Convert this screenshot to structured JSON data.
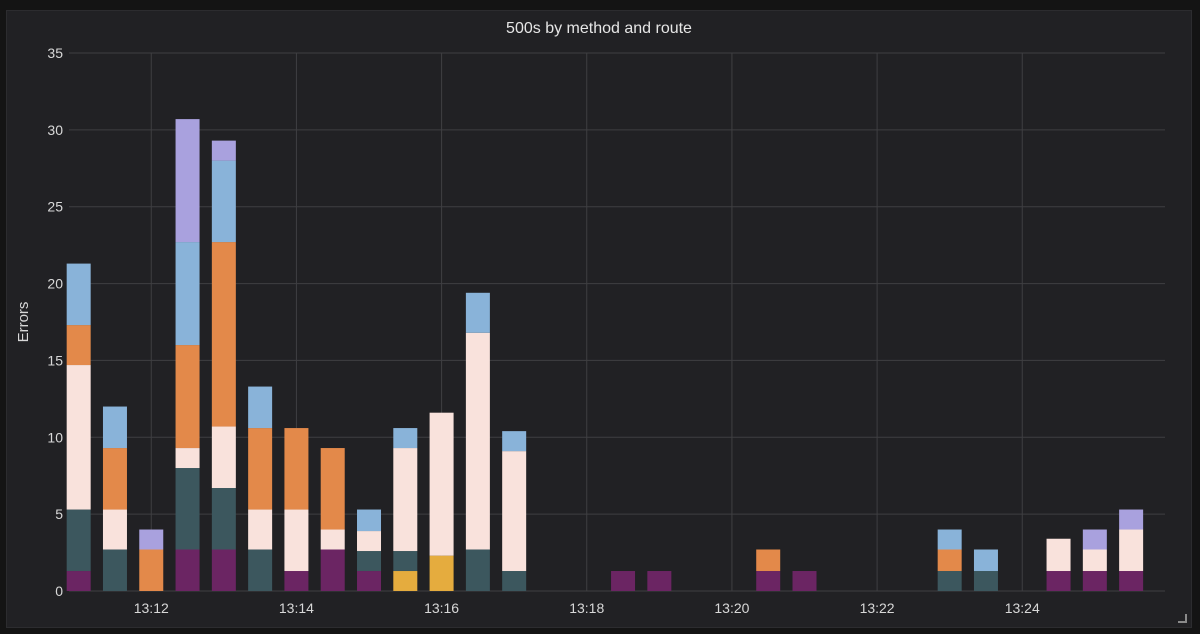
{
  "panel": {
    "title": "500s by method and route"
  },
  "chart_data": {
    "type": "bar",
    "stacked": true,
    "title": "500s by method and route",
    "xlabel": "",
    "ylabel": "Errors",
    "ylim": [
      0,
      35
    ],
    "yticks": [
      0,
      5,
      10,
      15,
      20,
      25,
      30,
      35
    ],
    "xlim": [
      "13:10:52",
      "13:25:58"
    ],
    "xticks": [
      "13:12",
      "13:14",
      "13:16",
      "13:18",
      "13:20",
      "13:22",
      "13:24"
    ],
    "grid": true,
    "legend": "none",
    "x": [
      "13:11",
      "13:11:30",
      "13:12",
      "13:12:30",
      "13:13",
      "13:13:30",
      "13:14",
      "13:14:30",
      "13:15",
      "13:15:30",
      "13:16",
      "13:16:30",
      "13:17",
      "13:18:30",
      "13:19",
      "13:20:30",
      "13:21",
      "13:23",
      "13:23:30",
      "13:24:30",
      "13:25",
      "13:25:30"
    ],
    "series": [
      {
        "color": "#6b2563",
        "values": [
          1.3,
          0,
          0,
          2.7,
          2.7,
          0,
          1.3,
          2.7,
          1.3,
          0,
          0,
          0,
          0,
          1.3,
          1.3,
          1.3,
          1.3,
          0,
          0,
          1.3,
          1.3,
          1.3
        ]
      },
      {
        "color": "#e5ac3e",
        "values": [
          0,
          0,
          0,
          0,
          0,
          0,
          0,
          0,
          0,
          1.3,
          2.3,
          0,
          0,
          0,
          0,
          0,
          0,
          0,
          0,
          0,
          0,
          0
        ]
      },
      {
        "color": "#3c575e",
        "values": [
          4.0,
          2.7,
          0,
          5.3,
          4.0,
          2.7,
          0,
          0,
          1.3,
          1.3,
          0,
          2.7,
          1.3,
          0,
          0,
          0,
          0,
          1.3,
          1.3,
          0,
          0,
          0
        ]
      },
      {
        "color": "#f9e2dc",
        "values": [
          9.4,
          2.6,
          0,
          1.3,
          4.0,
          2.6,
          4.0,
          1.3,
          1.3,
          6.7,
          9.3,
          14.1,
          7.8,
          0,
          0,
          0,
          0,
          0,
          0,
          2.1,
          1.4,
          2.7
        ]
      },
      {
        "color": "#e3894a",
        "values": [
          2.6,
          4.0,
          2.7,
          6.7,
          12.0,
          5.3,
          5.3,
          5.3,
          0,
          0,
          0,
          0,
          0,
          0,
          0,
          1.4,
          0,
          1.4,
          0,
          0,
          0,
          0
        ]
      },
      {
        "color": "#89b3d9",
        "values": [
          4.0,
          2.7,
          0,
          6.7,
          5.3,
          2.7,
          0,
          0,
          1.4,
          1.3,
          0,
          2.6,
          1.3,
          0,
          0,
          0,
          0,
          1.3,
          1.4,
          0,
          0,
          0
        ]
      },
      {
        "color": "#a9a1de",
        "values": [
          0,
          0,
          1.3,
          8.0,
          1.3,
          0,
          0,
          0,
          0,
          0,
          0,
          0,
          0,
          0,
          0,
          0,
          0,
          0,
          0,
          0,
          1.3,
          1.3
        ]
      }
    ]
  }
}
